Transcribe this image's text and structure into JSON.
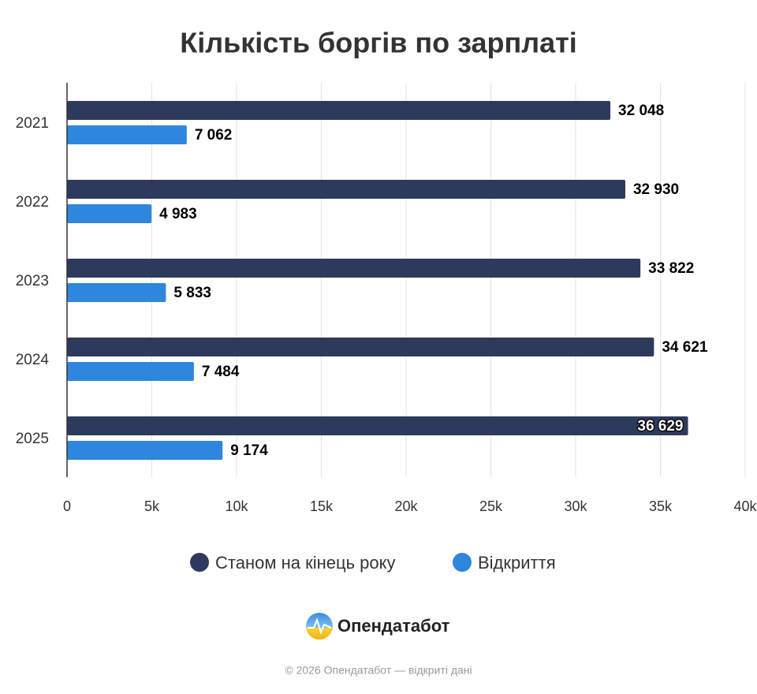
{
  "chart_data": {
    "type": "bar",
    "orientation": "horizontal",
    "title": "Кількість боргів по зарплаті",
    "categories": [
      "2021",
      "2022",
      "2023",
      "2024",
      "2025"
    ],
    "series": [
      {
        "name": "Станом на кінець року",
        "color": "#2e3a5c",
        "values": [
          32048,
          32930,
          33822,
          34621,
          36629
        ],
        "value_labels": [
          "32 048",
          "32 930",
          "33 822",
          "34 621",
          "36 629"
        ]
      },
      {
        "name": "Відкриття",
        "color": "#2f86dd",
        "values": [
          7062,
          4983,
          5833,
          7484,
          9174
        ],
        "value_labels": [
          "7 062",
          "4 983",
          "5 833",
          "7 484",
          "9 174"
        ]
      }
    ],
    "xlim": [
      0,
      40000
    ],
    "xticks": [
      0,
      {
        "value": 5000,
        "label": "5k"
      },
      {
        "value": 10000,
        "label": "10k"
      },
      {
        "value": 15000,
        "label": "15k"
      },
      {
        "value": 20000,
        "label": "20k"
      },
      {
        "value": 25000,
        "label": "25k"
      },
      {
        "value": 30000,
        "label": "30k"
      },
      {
        "value": 35000,
        "label": "35k"
      },
      {
        "value": 40000,
        "label": "40k"
      }
    ],
    "grid": true,
    "legend": "bottom"
  },
  "footer": {
    "brand": "Опендатабот",
    "copyright": "© 2026 Опендатабот — відкриті дані"
  }
}
